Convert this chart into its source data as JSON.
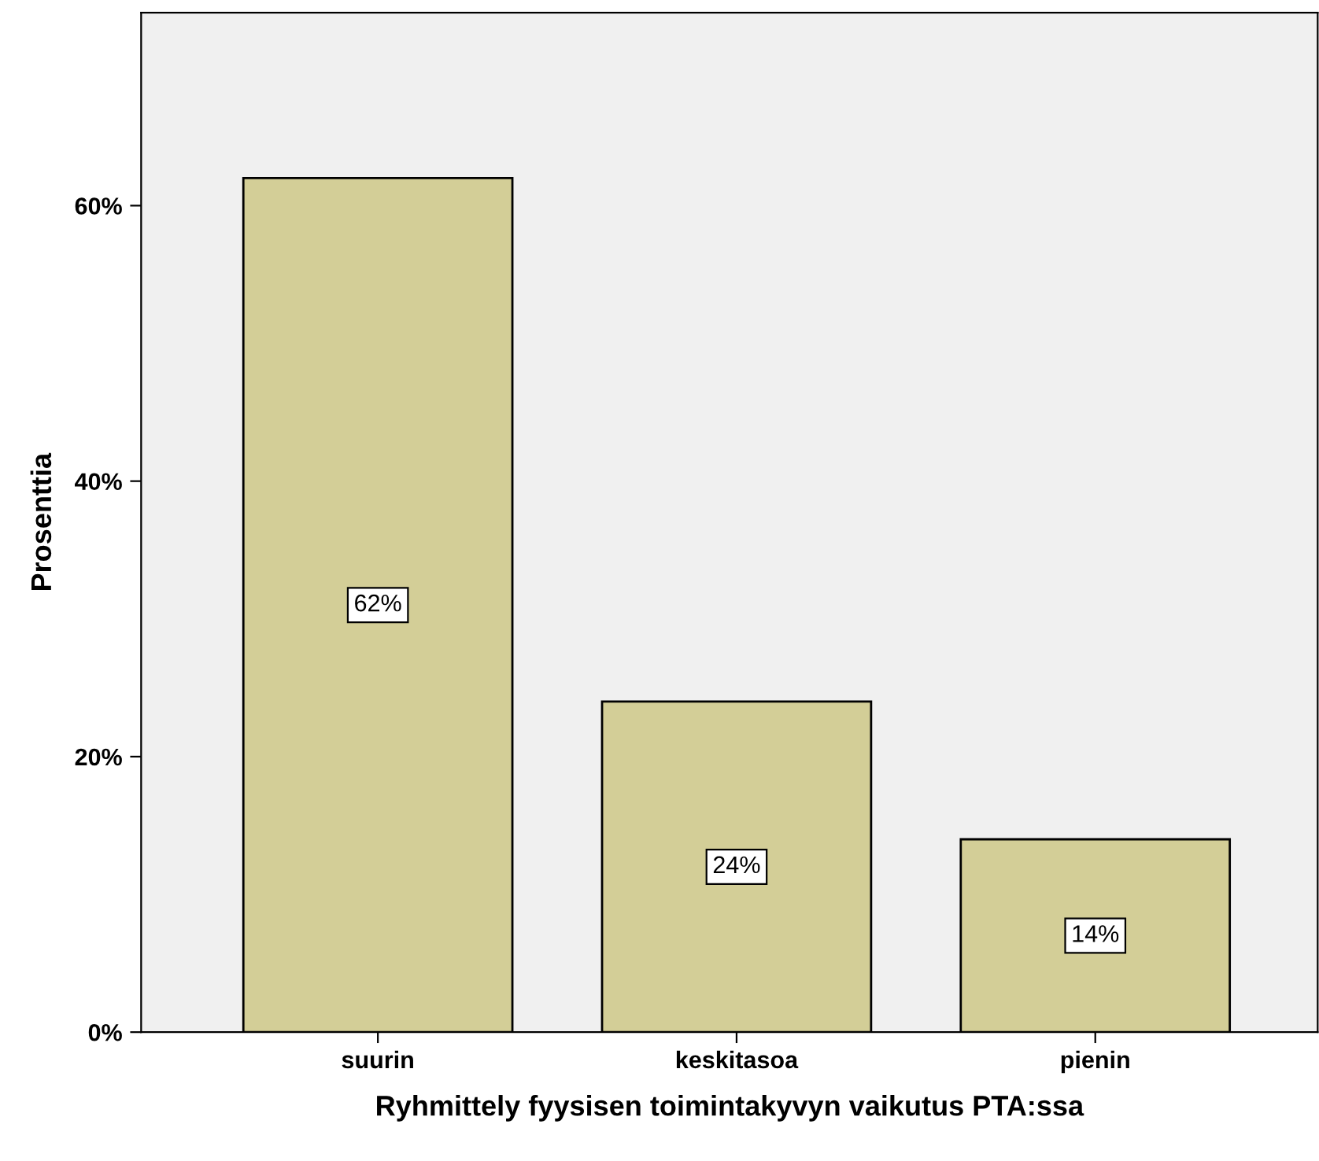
{
  "chart_data": {
    "type": "bar",
    "xlabel": "Ryhmittely fyysisen toimintakyvyn vaikutus PTA:ssa",
    "ylabel": "Prosenttia",
    "categories": [
      "suurin",
      "keskitasoa",
      "pienin"
    ],
    "values": [
      62,
      24,
      14
    ],
    "color": "#d3ce97",
    "value_labels": [
      "62%",
      "24%",
      "14%"
    ],
    "ylim": [
      0,
      74
    ],
    "yticks": [
      {
        "value": 0,
        "label": "0%"
      },
      {
        "value": 20,
        "label": "20%"
      },
      {
        "value": 40,
        "label": "40%"
      },
      {
        "value": 60,
        "label": "60%"
      }
    ],
    "grid": false
  }
}
